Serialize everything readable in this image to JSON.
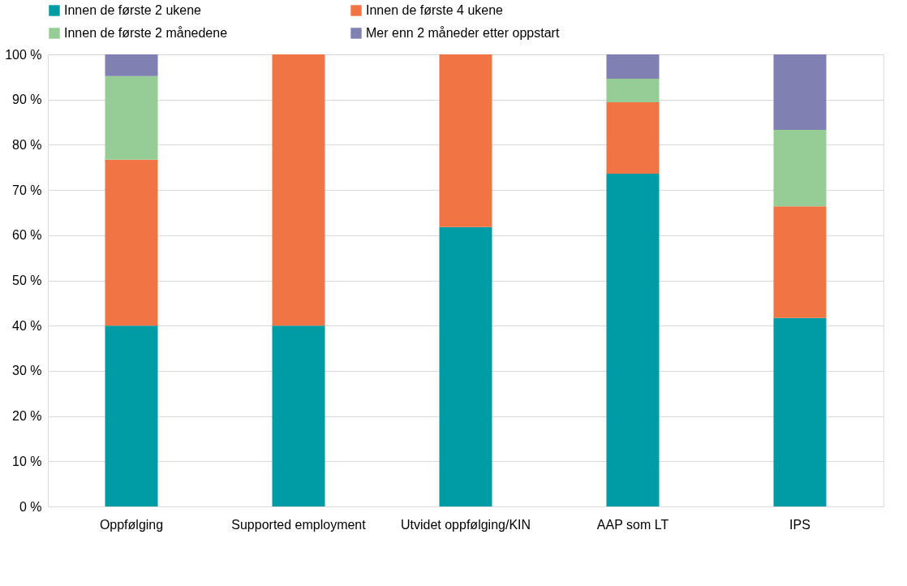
{
  "chart_data": {
    "type": "bar",
    "stacked": true,
    "categories": [
      "Oppfølging",
      "Supported employment",
      "Utvidet oppfølging/KIN",
      "AAP som LT",
      "IPS"
    ],
    "series": [
      {
        "name": "Innen de første 2 ukene",
        "color": "#009ca6",
        "values": [
          40,
          40,
          61.8,
          73.6,
          41.7
        ]
      },
      {
        "name": "Innen de første 4 ukene",
        "color": "#f07444",
        "values": [
          36.7,
          60,
          38.2,
          15.8,
          24.7
        ]
      },
      {
        "name": "Innen de første 2 månedene",
        "color": "#96cc96",
        "values": [
          18.5,
          0,
          0,
          5.2,
          16.9
        ]
      },
      {
        "name": "Mer enn 2 måneder etter oppstart",
        "color": "#8080b3",
        "values": [
          4.8,
          0,
          0,
          5.4,
          16.7
        ]
      }
    ],
    "ylim": [
      0,
      100
    ],
    "yticks": [
      {
        "value": 0,
        "label": "0 %"
      },
      {
        "value": 10,
        "label": "10 %"
      },
      {
        "value": 20,
        "label": "20 %"
      },
      {
        "value": 30,
        "label": "30 %"
      },
      {
        "value": 40,
        "label": "40 %"
      },
      {
        "value": 50,
        "label": "50 %"
      },
      {
        "value": 60,
        "label": "60 %"
      },
      {
        "value": 70,
        "label": "70 %"
      },
      {
        "value": 80,
        "label": "80 %"
      },
      {
        "value": 90,
        "label": "90 %"
      },
      {
        "value": 100,
        "label": "100 %"
      }
    ],
    "grid": "y",
    "legend": "top"
  }
}
